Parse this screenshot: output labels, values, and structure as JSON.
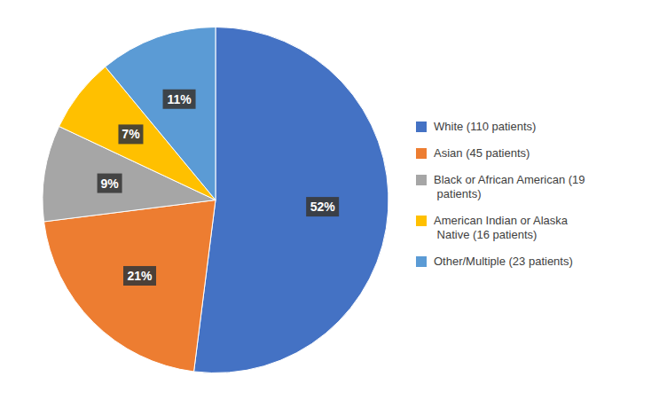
{
  "chart_data": {
    "type": "pie",
    "categories": [
      "White (110 patients)",
      "Asian (45 patients)",
      "Black or African American (19\n patients)",
      "American Indian or Alaska\n Native (16 patients)",
      "Other/Multiple (23 patients)"
    ],
    "values": [
      52,
      21,
      9,
      7,
      11
    ],
    "value_labels": [
      "52%",
      "21%",
      "9%",
      "7%",
      "11%"
    ],
    "data_labels": true,
    "colors": [
      "#4472C4",
      "#ED7D31",
      "#A6A6A6",
      "#FFC000",
      "#5B9BD5"
    ],
    "legend": "right"
  }
}
